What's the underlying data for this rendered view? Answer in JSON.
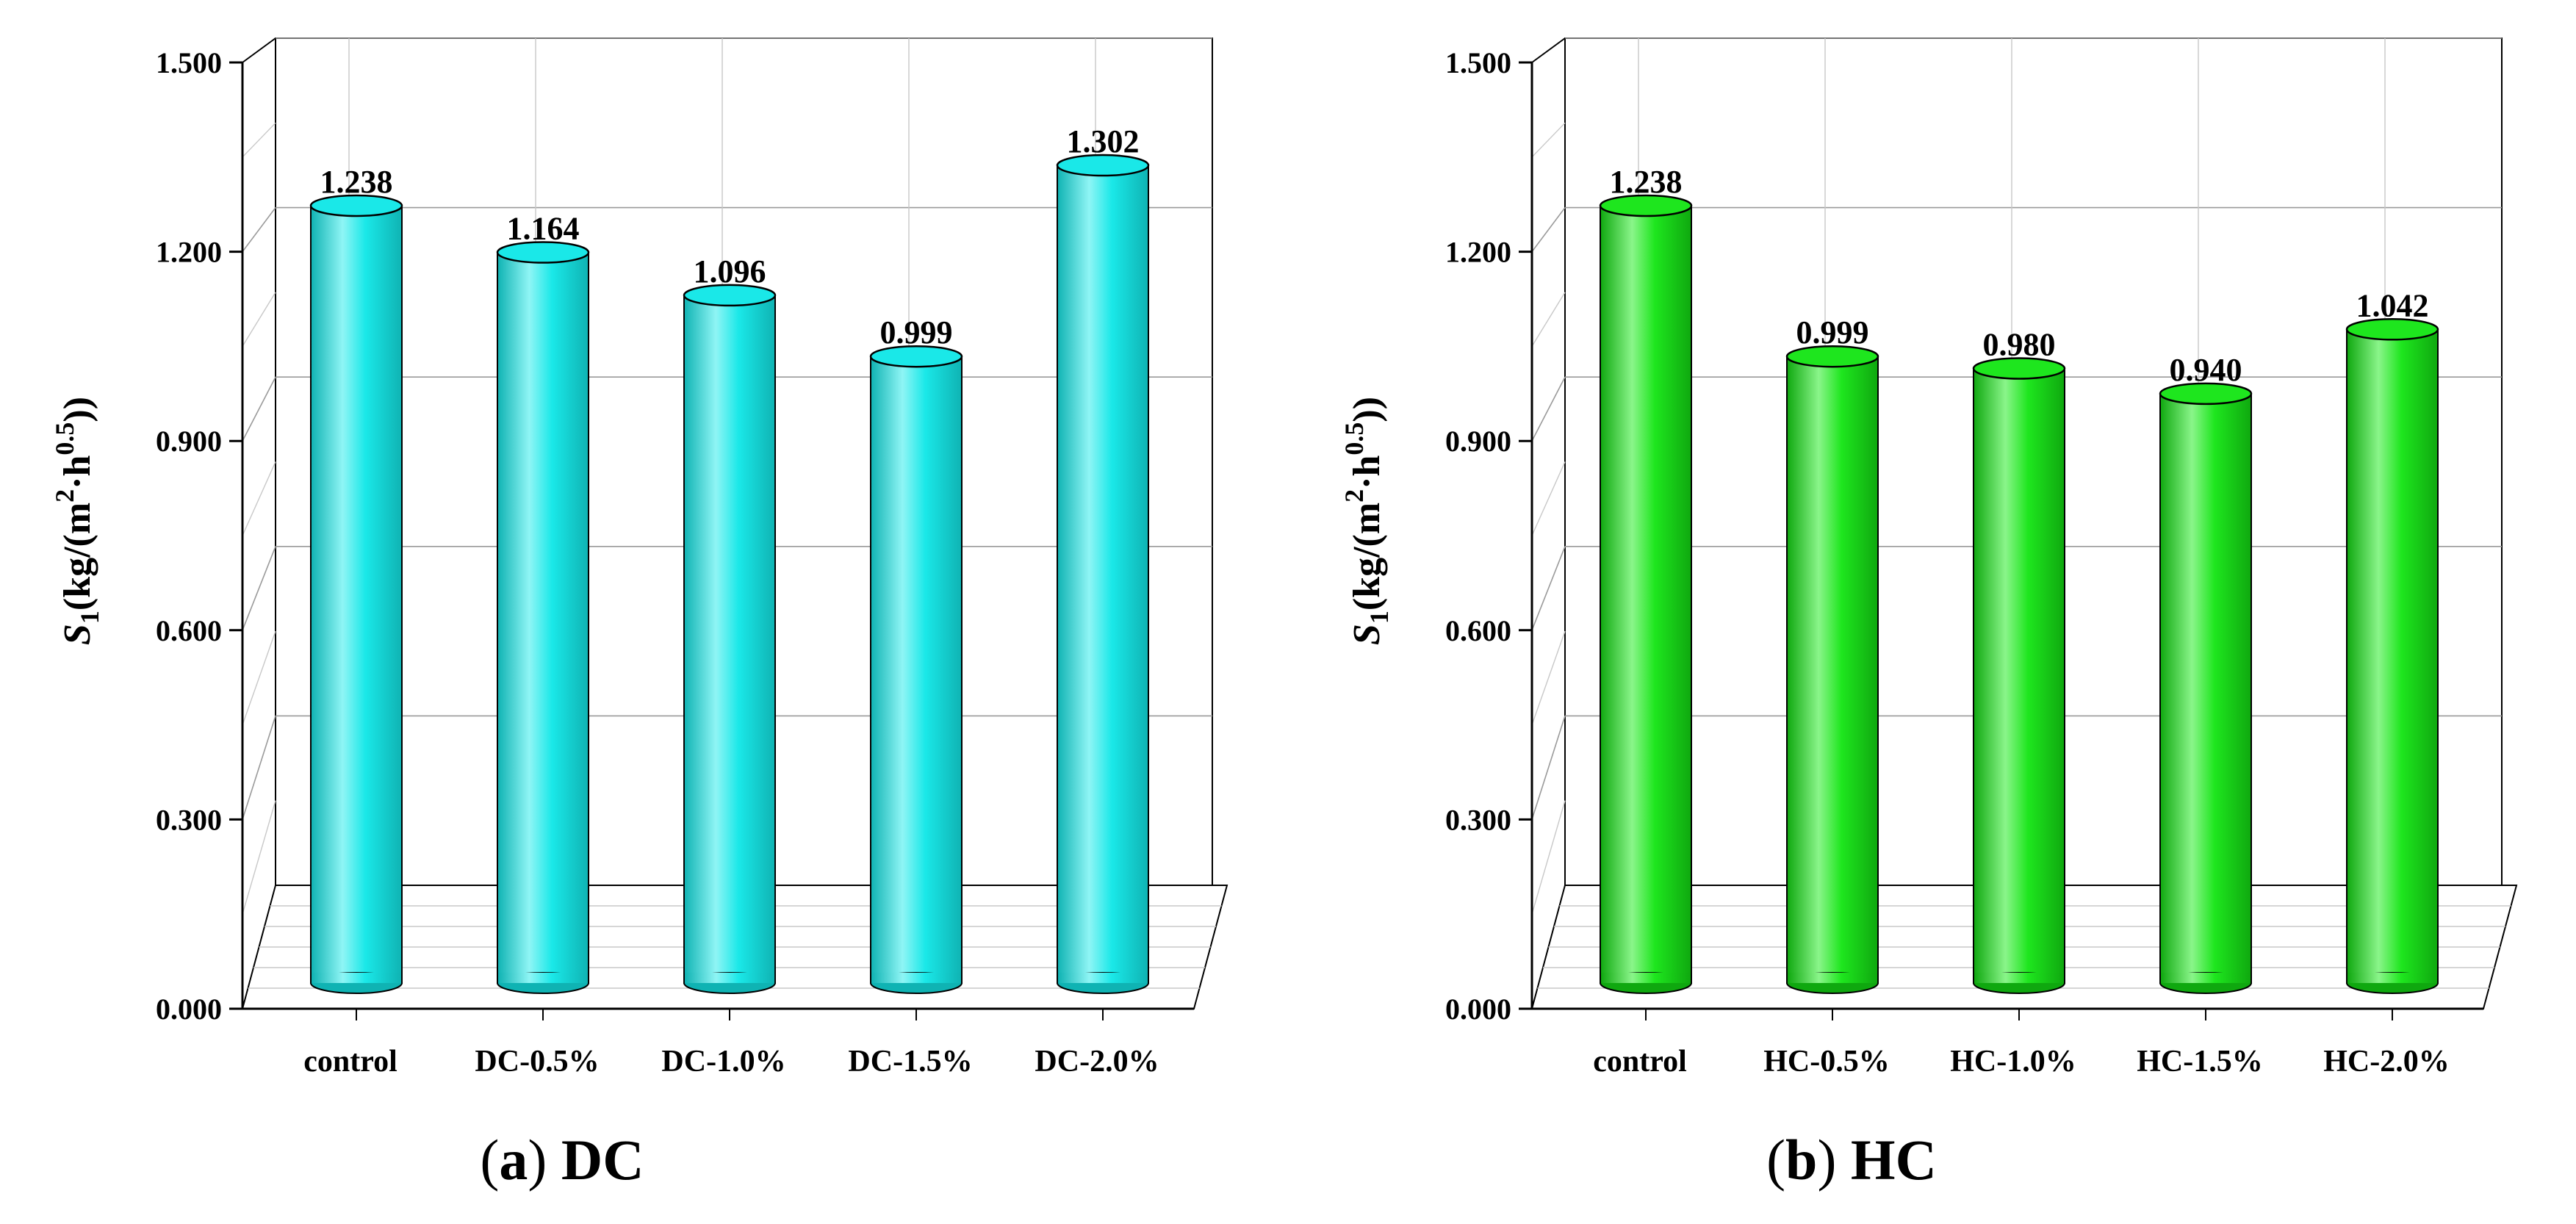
{
  "chart_data": [
    {
      "id": "a",
      "type": "bar",
      "title": "",
      "caption": {
        "letter": "a",
        "name": "DC"
      },
      "ylabel": "S1(kg/(m2·h0.5))",
      "ylabel_parts": {
        "var": "S",
        "sub": "1",
        "a": "(kg/(m",
        "sup1": "2",
        "b": "·h",
        "sup2": "0.5",
        "c": "))"
      },
      "xlabel": "",
      "ylim": [
        0,
        1.5
      ],
      "yticks": [
        "0.000",
        "0.300",
        "0.600",
        "0.900",
        "1.200",
        "1.500"
      ],
      "categories": [
        "control",
        "DC-0.5%",
        "DC-1.0%",
        "DC-1.5%",
        "DC-2.0%"
      ],
      "values": [
        1.238,
        1.164,
        1.096,
        0.999,
        1.302
      ],
      "value_labels": [
        "1.238",
        "1.164",
        "1.096",
        "0.999",
        "1.302"
      ],
      "color": "#1AE8E8",
      "colorDark": "#0FB3B3",
      "colorLight": "#8FF5F5"
    },
    {
      "id": "b",
      "type": "bar",
      "title": "",
      "caption": {
        "letter": "b",
        "name": "HC"
      },
      "ylabel": "S1(kg/(m2·h0.5))",
      "ylabel_parts": {
        "var": "S",
        "sub": "1",
        "a": "(kg/(m",
        "sup1": "2",
        "b": "·h",
        "sup2": "0.5",
        "c": "))"
      },
      "xlabel": "",
      "ylim": [
        0,
        1.5
      ],
      "yticks": [
        "0.000",
        "0.300",
        "0.600",
        "0.900",
        "1.200",
        "1.500"
      ],
      "categories": [
        "control",
        "HC-0.5%",
        "HC-1.0%",
        "HC-1.5%",
        "HC-2.0%"
      ],
      "values": [
        1.238,
        0.999,
        0.98,
        0.94,
        1.042
      ],
      "value_labels": [
        "1.238",
        "0.999",
        "0.980",
        "0.940",
        "1.042"
      ],
      "color": "#1EE61E",
      "colorDark": "#0FA80F",
      "colorLight": "#8AF58A"
    }
  ]
}
